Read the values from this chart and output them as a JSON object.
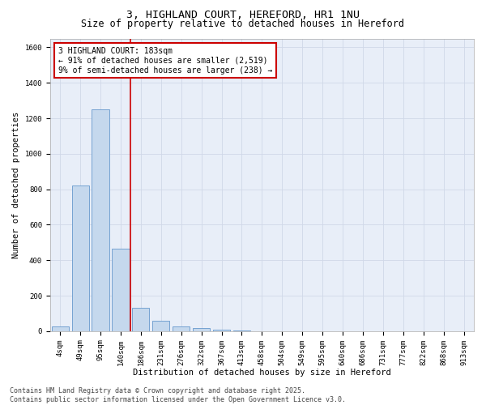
{
  "title_line1": "3, HIGHLAND COURT, HEREFORD, HR1 1NU",
  "title_line2": "Size of property relative to detached houses in Hereford",
  "xlabel": "Distribution of detached houses by size in Hereford",
  "ylabel": "Number of detached properties",
  "categories": [
    "4sqm",
    "49sqm",
    "95sqm",
    "140sqm",
    "186sqm",
    "231sqm",
    "276sqm",
    "322sqm",
    "367sqm",
    "413sqm",
    "458sqm",
    "504sqm",
    "549sqm",
    "595sqm",
    "640sqm",
    "686sqm",
    "731sqm",
    "777sqm",
    "822sqm",
    "868sqm",
    "913sqm"
  ],
  "values": [
    25,
    820,
    1250,
    465,
    130,
    60,
    28,
    18,
    10,
    5,
    0,
    0,
    0,
    0,
    0,
    0,
    0,
    0,
    0,
    0,
    0
  ],
  "bar_color": "#c5d8ed",
  "bar_edge_color": "#6699cc",
  "grid_color": "#d0d8e8",
  "bg_color": "#e8eef8",
  "vline_x_index": 4,
  "vline_color": "#cc0000",
  "annotation_line1": "3 HIGHLAND COURT: 183sqm",
  "annotation_line2": "← 91% of detached houses are smaller (2,519)",
  "annotation_line3": "9% of semi-detached houses are larger (238) →",
  "annotation_box_color": "#cc0000",
  "ylim": [
    0,
    1650
  ],
  "yticks": [
    0,
    200,
    400,
    600,
    800,
    1000,
    1200,
    1400,
    1600
  ],
  "footer_text": "Contains HM Land Registry data © Crown copyright and database right 2025.\nContains public sector information licensed under the Open Government Licence v3.0.",
  "title_fontsize": 9.5,
  "subtitle_fontsize": 8.5,
  "axis_label_fontsize": 7.5,
  "tick_fontsize": 6.5,
  "annotation_fontsize": 7,
  "footer_fontsize": 6
}
